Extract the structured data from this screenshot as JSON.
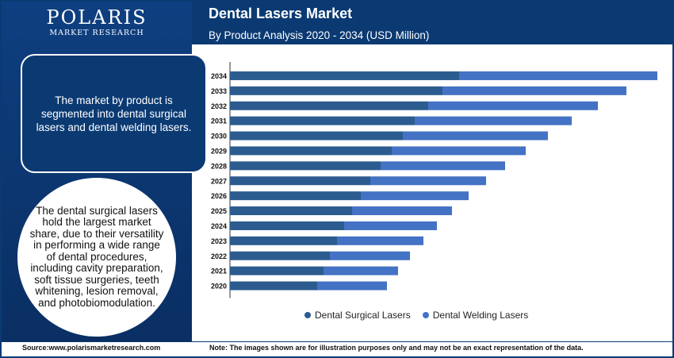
{
  "logo": {
    "name": "POLARIS",
    "tagline": "MARKET RESEARCH"
  },
  "header": {
    "title": "Dental Lasers Market",
    "subtitle": "By Product Analysis 2020 - 2034 (USD Million)"
  },
  "sidebar": {
    "box_text": "The market by product is segmented into dental surgical lasers and dental welding lasers.",
    "circle_text": "The dental surgical lasers hold the largest market share, due to their versatility in performing a wide range of dental procedures, including cavity preparation, soft tissue surgeries, teeth whitening, lesion removal, and photobiomodulation."
  },
  "footer": {
    "source": "Source:www.polarismarketresearch.com",
    "note": "Note: The images shown are for illustration purposes only and may not be an exact representation of the data."
  },
  "colors": {
    "surgical": "#2c5c8f",
    "welding": "#4472c4",
    "brand": "#0b3a73"
  },
  "chart_data": {
    "type": "bar",
    "orientation": "horizontal",
    "stacked": true,
    "categories": [
      "2034",
      "2033",
      "2032",
      "2031",
      "2030",
      "2029",
      "2028",
      "2027",
      "2026",
      "2025",
      "2024",
      "2023",
      "2022",
      "2021",
      "2020"
    ],
    "series": [
      {
        "name": "Dental Surgical Lasers",
        "values": [
          289,
          268,
          250,
          233,
          218,
          204,
          190,
          177,
          165,
          154,
          144,
          135,
          126,
          118,
          110
        ]
      },
      {
        "name": "Dental Welding Lasers",
        "values": [
          250,
          232,
          214,
          198,
          183,
          169,
          157,
          146,
          136,
          126,
          117,
          109,
          101,
          94,
          88
        ]
      }
    ],
    "title": "Dental Lasers Market",
    "subtitle": "By Product Analysis 2020 - 2034 (USD Million)",
    "xlabel": "",
    "ylabel": "",
    "xlim": [
      0,
      540
    ],
    "grid": false,
    "legend": "bottom"
  }
}
